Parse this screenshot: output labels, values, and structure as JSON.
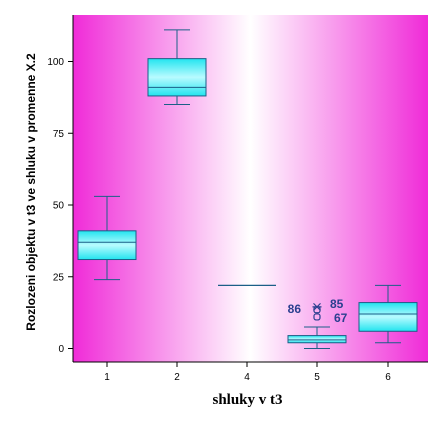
{
  "chart_data": {
    "type": "boxplot",
    "title": "",
    "xlabel": "shluky v t3",
    "ylabel": "Rozlozeni objektu v t3 ve shluku v promenne X.2",
    "categories": [
      "1",
      "2",
      "4",
      "5",
      "6"
    ],
    "ylim": [
      -5,
      117
    ],
    "yticks": [
      0,
      25,
      50,
      75,
      100
    ],
    "grid": false,
    "boxes": [
      {
        "category": "1",
        "whisker_low": 24,
        "q1": 31,
        "median": 37,
        "q3": 41,
        "whisker_high": 53
      },
      {
        "category": "2",
        "whisker_low": 85,
        "q1": 88,
        "median": 91,
        "q3": 101,
        "whisker_high": 111
      },
      {
        "category": "4",
        "whisker_low": 22,
        "q1": 22,
        "median": 22,
        "q3": 22,
        "whisker_high": 22
      },
      {
        "category": "5",
        "whisker_low": 0,
        "q1": 2,
        "median": 3,
        "q3": 4.5,
        "whisker_high": 7.5
      },
      {
        "category": "6",
        "whisker_low": 2,
        "q1": 6,
        "median": 12,
        "q3": 16,
        "whisker_high": 22
      }
    ],
    "outliers": [
      {
        "category": "5",
        "value": 11,
        "label": "67",
        "marker": "circle"
      },
      {
        "category": "5",
        "value": 13.5,
        "label": "86",
        "marker": "circle"
      },
      {
        "category": "5",
        "value": 14.5,
        "label": "85",
        "marker": "star"
      }
    ],
    "colors": {
      "box_fill": "#22e4ef",
      "box_highlight": "#b8fbff",
      "box_stroke": "#1b5f87",
      "whisker": "#1b5f87",
      "outlier_label": "#2a3f8f",
      "background_edge": "#f02bd8",
      "background_center": "#ffffff",
      "axis": "#000000"
    }
  }
}
